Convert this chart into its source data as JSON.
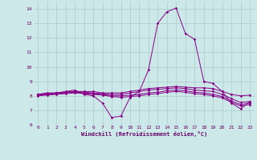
{
  "xlabel": "Windchill (Refroidissement éolien,°C)",
  "background_color": "#cce8e8",
  "grid_color": "#aacccc",
  "line_color": "#880088",
  "xlim": [
    -0.5,
    23.5
  ],
  "ylim": [
    6,
    14.5
  ],
  "yticks": [
    6,
    7,
    8,
    9,
    10,
    11,
    12,
    13,
    14
  ],
  "xticks": [
    0,
    1,
    2,
    3,
    4,
    5,
    6,
    7,
    8,
    9,
    10,
    11,
    12,
    13,
    14,
    15,
    16,
    17,
    18,
    19,
    20,
    21,
    22,
    23
  ],
  "series": [
    [
      8.1,
      8.2,
      8.2,
      8.3,
      8.4,
      8.1,
      8.0,
      7.5,
      6.5,
      6.6,
      7.9,
      8.3,
      9.8,
      13.0,
      13.8,
      14.05,
      12.3,
      11.9,
      9.0,
      8.85,
      8.3,
      7.5,
      7.1,
      7.6
    ],
    [
      8.1,
      8.15,
      8.2,
      8.25,
      8.3,
      8.3,
      8.3,
      8.2,
      8.2,
      8.2,
      8.3,
      8.4,
      8.5,
      8.55,
      8.6,
      8.65,
      8.6,
      8.55,
      8.55,
      8.5,
      8.3,
      8.1,
      8.0,
      8.05
    ],
    [
      8.1,
      8.15,
      8.2,
      8.25,
      8.3,
      8.25,
      8.2,
      8.15,
      8.1,
      8.1,
      8.2,
      8.3,
      8.4,
      8.45,
      8.5,
      8.55,
      8.5,
      8.4,
      8.35,
      8.3,
      8.1,
      7.8,
      7.55,
      7.6
    ],
    [
      8.05,
      8.1,
      8.15,
      8.2,
      8.25,
      8.2,
      8.15,
      8.1,
      8.0,
      8.0,
      8.05,
      8.1,
      8.2,
      8.25,
      8.35,
      8.4,
      8.35,
      8.25,
      8.2,
      8.1,
      7.95,
      7.65,
      7.4,
      7.5
    ],
    [
      8.0,
      8.05,
      8.1,
      8.15,
      8.2,
      8.15,
      8.1,
      8.05,
      7.95,
      7.9,
      7.95,
      8.0,
      8.1,
      8.15,
      8.25,
      8.3,
      8.25,
      8.15,
      8.1,
      8.0,
      7.85,
      7.55,
      7.3,
      7.4
    ]
  ]
}
